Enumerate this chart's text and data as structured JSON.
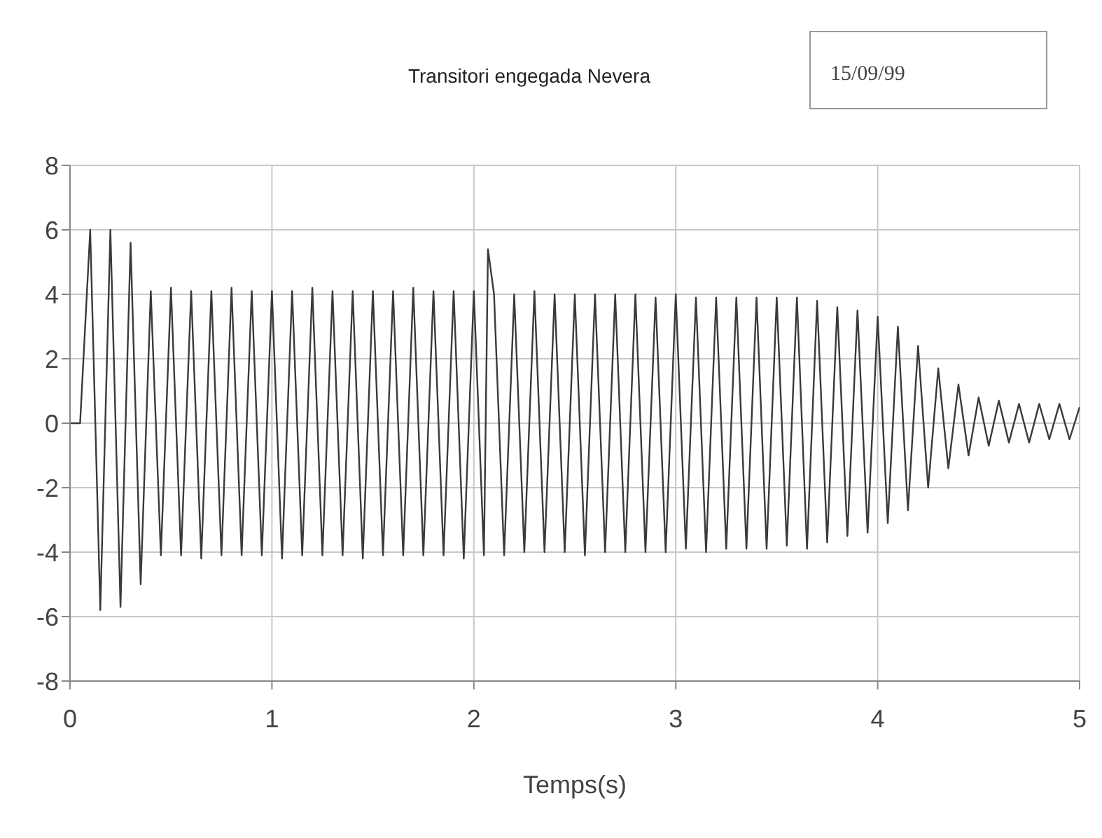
{
  "chart_data": {
    "type": "line",
    "title": "Transitori engegada Nevera",
    "xlabel": "Temps(s)",
    "annotations": [
      "15/09/99"
    ],
    "xlim": [
      0,
      5
    ],
    "xticks": [
      0,
      1,
      2,
      3,
      4,
      5
    ],
    "ylim": [
      -8,
      8
    ],
    "yticks": [
      -8,
      -6,
      -4,
      -2,
      0,
      2,
      4,
      6,
      8
    ],
    "grid": true,
    "legend": false,
    "marker": "none",
    "line_style": "solid",
    "series": [
      {
        "color": "#3a3a3a",
        "x": [
          0,
          0.05,
          0.1,
          0.15,
          0.2,
          0.25,
          0.3,
          0.35,
          0.4,
          0.45,
          0.5,
          0.55,
          0.6,
          0.65,
          0.7,
          0.75,
          0.8,
          0.85,
          0.9,
          0.95,
          1.0,
          1.05,
          1.1,
          1.15,
          1.2,
          1.25,
          1.3,
          1.35,
          1.4,
          1.45,
          1.5,
          1.55,
          1.6,
          1.65,
          1.7,
          1.75,
          1.8,
          1.85,
          1.9,
          1.95,
          2.0,
          2.05,
          2.07,
          2.1,
          2.15,
          2.2,
          2.25,
          2.3,
          2.35,
          2.4,
          2.45,
          2.5,
          2.55,
          2.6,
          2.65,
          2.7,
          2.75,
          2.8,
          2.85,
          2.9,
          2.95,
          3.0,
          3.05,
          3.1,
          3.15,
          3.2,
          3.25,
          3.3,
          3.35,
          3.4,
          3.45,
          3.5,
          3.55,
          3.6,
          3.65,
          3.7,
          3.75,
          3.8,
          3.85,
          3.9,
          3.95,
          4.0,
          4.05,
          4.1,
          4.15,
          4.2,
          4.25,
          4.3,
          4.35,
          4.4,
          4.45,
          4.5,
          4.55,
          4.6,
          4.65,
          4.7,
          4.75,
          4.8,
          4.85,
          4.9,
          4.95,
          5.0
        ],
        "values": [
          0,
          0,
          6,
          -5.8,
          6,
          -5.7,
          5.6,
          -5,
          4.1,
          -4.1,
          4.2,
          -4.1,
          4.1,
          -4.2,
          4.1,
          -4.1,
          4.2,
          -4.1,
          4.1,
          -4.1,
          4.1,
          -4.2,
          4.1,
          -4.1,
          4.2,
          -4.1,
          4.1,
          -4.1,
          4.1,
          -4.2,
          4.1,
          -4.1,
          4.1,
          -4.1,
          4.2,
          -4.1,
          4.1,
          -4.1,
          4.1,
          -4.2,
          4.1,
          -4.1,
          5.4,
          4.0,
          -4.1,
          4.0,
          -4.0,
          4.1,
          -4.0,
          4.0,
          -4.0,
          4.0,
          -4.1,
          4.0,
          -4.0,
          4.0,
          -4.0,
          4.0,
          -4.0,
          3.9,
          -4.0,
          4.0,
          -3.9,
          3.9,
          -4.0,
          3.9,
          -3.9,
          3.9,
          -3.9,
          3.9,
          -3.9,
          3.9,
          -3.8,
          3.9,
          -3.9,
          3.8,
          -3.7,
          3.6,
          -3.5,
          3.5,
          -3.4,
          3.3,
          -3.1,
          3.0,
          -2.7,
          2.4,
          -2.0,
          1.7,
          -1.4,
          1.2,
          -1.0,
          0.8,
          -0.7,
          0.7,
          -0.6,
          0.6,
          -0.6,
          0.6,
          -0.5,
          0.6,
          -0.5,
          0.5
        ]
      }
    ]
  }
}
